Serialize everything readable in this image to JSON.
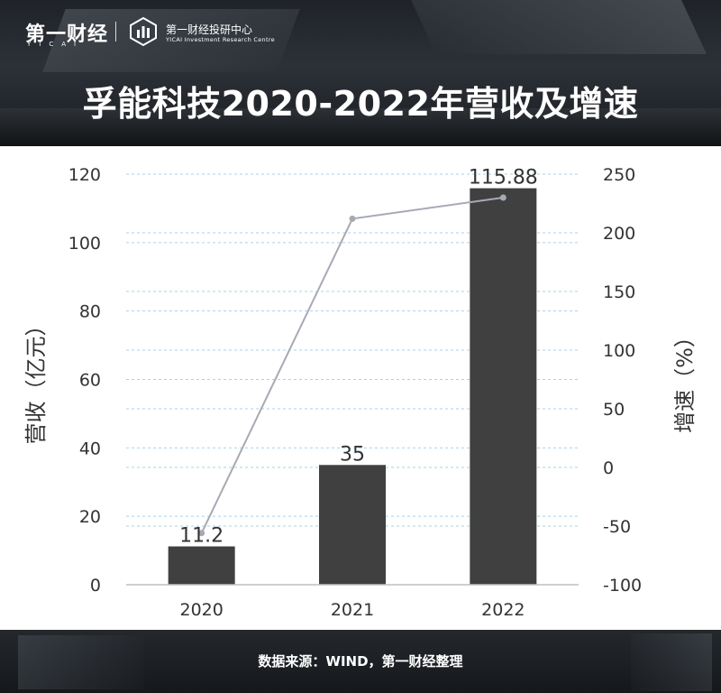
{
  "brand": {
    "logo_text": "第一财经",
    "logo_sub": "YICAI",
    "center_cn": "第一财经投研中心",
    "center_en": "YICAI Investment Research Centre"
  },
  "title": "孚能科技2020-2022年营收及增速",
  "footer": {
    "source": "数据来源：WIND，第一财经整理"
  },
  "colors": {
    "bar": "#404040",
    "line": "#a6aab4",
    "grid": "#a9d3e6",
    "header_bg": "#22262b"
  },
  "chart_data": {
    "type": "bar",
    "categories": [
      "2020",
      "2021",
      "2022"
    ],
    "series": [
      {
        "name": "营收",
        "type": "bar",
        "axis": "left",
        "values": [
          11.2,
          35,
          115.88
        ],
        "labels": [
          "11.2",
          "35",
          "115.88"
        ]
      },
      {
        "name": "增速",
        "type": "line",
        "axis": "right",
        "values": [
          -56,
          212,
          230
        ]
      }
    ],
    "y_left": {
      "label": "营收（亿元）",
      "min": 0,
      "max": 120,
      "ticks": [
        "0",
        "20",
        "40",
        "60",
        "80",
        "100",
        "120"
      ]
    },
    "y_right": {
      "label": "增速（%）",
      "min": -100,
      "max": 250,
      "ticks": [
        "-100",
        "-50",
        "0",
        "50",
        "100",
        "150",
        "200",
        "250"
      ]
    },
    "grid": true
  }
}
